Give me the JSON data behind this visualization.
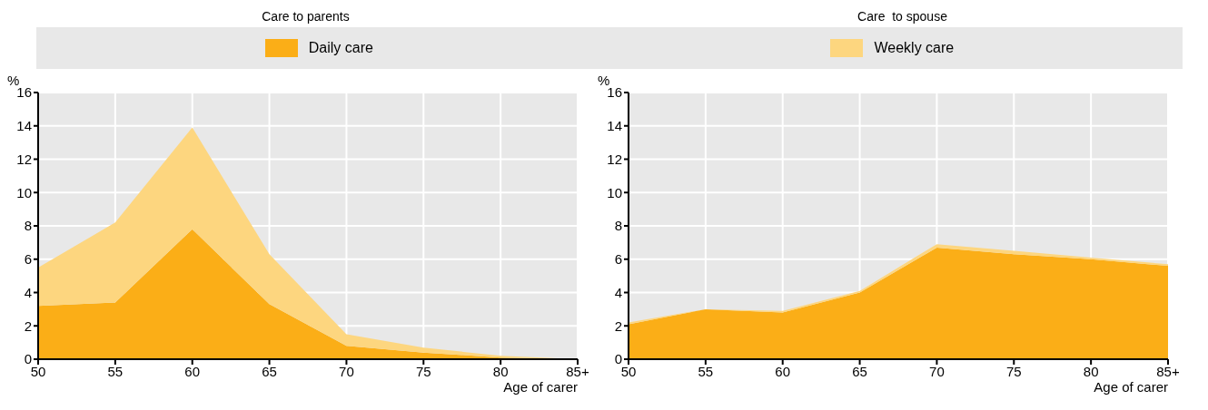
{
  "chart_data": [
    {
      "type": "area",
      "title": "Care to parents",
      "ylabel": "%",
      "xlabel": "Age of carer",
      "categories": [
        "50",
        "55",
        "60",
        "65",
        "70",
        "75",
        "80",
        "85+"
      ],
      "stacked": true,
      "ylim": [
        0,
        16
      ],
      "yticks": [
        0,
        2,
        4,
        6,
        8,
        10,
        12,
        14,
        16
      ],
      "grid": true,
      "legend": "top",
      "series": [
        {
          "name": "Daily care",
          "color": "#fbae17",
          "values": [
            3.2,
            3.4,
            7.8,
            3.3,
            0.8,
            0.4,
            0.1,
            0
          ]
        },
        {
          "name": "Weekly care",
          "color": "#fdd67f",
          "values": [
            2.3,
            4.8,
            6.1,
            3.0,
            0.7,
            0.3,
            0.1,
            0
          ]
        }
      ]
    },
    {
      "type": "area",
      "title": "Care  to spouse",
      "ylabel": "%",
      "xlabel": "Age of carer",
      "categories": [
        "50",
        "55",
        "60",
        "65",
        "70",
        "75",
        "80",
        "85+"
      ],
      "stacked": true,
      "ylim": [
        0,
        16
      ],
      "yticks": [
        0,
        2,
        4,
        6,
        8,
        10,
        12,
        14,
        16
      ],
      "grid": true,
      "series": [
        {
          "color": "#fbae17",
          "values": [
            2.1,
            3.0,
            2.8,
            4.0,
            6.7,
            6.3,
            6.0,
            5.6
          ]
        },
        {
          "color": "#fdd67f",
          "values": [
            0.1,
            0,
            0.1,
            0.1,
            0.2,
            0.2,
            0.1,
            0.1
          ]
        }
      ]
    }
  ]
}
